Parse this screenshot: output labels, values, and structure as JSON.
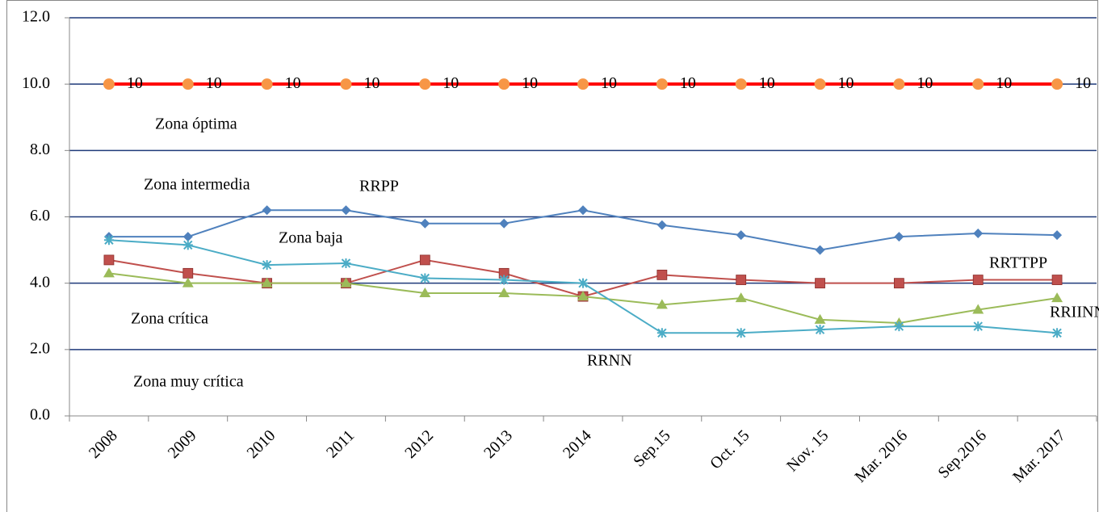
{
  "chart_data": {
    "type": "line",
    "categories": [
      "2008",
      "2009",
      "2010",
      "2011",
      "2012",
      "2013",
      "2014",
      "Sep.15",
      "Oct. 15",
      "Nov. 15",
      "Mar. 2016",
      "Sep.2016",
      "Mar. 2017"
    ],
    "series": [
      {
        "color": "#FF0000",
        "marker_color": "#F79646",
        "marker": "circle",
        "data_labels": true,
        "values": [
          10,
          10,
          10,
          10,
          10,
          10,
          10,
          10,
          10,
          10,
          10,
          10,
          10
        ]
      },
      {
        "name": "RRPP",
        "color": "#4F81BD",
        "marker": "diamond",
        "values": [
          5.4,
          5.4,
          6.2,
          6.2,
          5.8,
          5.8,
          6.2,
          5.75,
          5.45,
          5.0,
          5.4,
          5.5,
          5.45
        ]
      },
      {
        "name": "RRTTPP",
        "color": "#C0504D",
        "marker": "square",
        "values": [
          4.7,
          4.3,
          4.0,
          4.0,
          4.7,
          4.3,
          3.6,
          4.25,
          4.1,
          4.0,
          4.0,
          4.1,
          4.1
        ]
      },
      {
        "name": "RRIINN",
        "color": "#9BBB59",
        "marker": "triangle",
        "values": [
          4.3,
          4.0,
          4.0,
          4.0,
          3.7,
          3.7,
          3.6,
          3.35,
          3.55,
          2.9,
          2.8,
          3.2,
          3.55
        ]
      },
      {
        "name": "RRNN",
        "color": "#4BACC6",
        "marker": "star",
        "values": [
          5.3,
          5.15,
          4.55,
          4.6,
          4.15,
          4.1,
          4.0,
          2.5,
          2.5,
          2.6,
          2.7,
          2.7,
          2.5
        ]
      }
    ],
    "annotations": [
      "Zona óptima",
      "Zona intermedia",
      "Zona baja",
      "Zona crítica",
      "Zona muy crítica"
    ],
    "ylim": [
      0,
      12
    ],
    "yticks": [
      {
        "value": 0,
        "label": "0.0"
      },
      {
        "value": 2,
        "label": "2.0"
      },
      {
        "value": 4,
        "label": "4.0"
      },
      {
        "value": 6,
        "label": "6.0"
      },
      {
        "value": 8,
        "label": "8.0"
      },
      {
        "value": 10,
        "label": "10.0"
      },
      {
        "value": 12,
        "label": "12.0"
      }
    ],
    "grid": true
  }
}
